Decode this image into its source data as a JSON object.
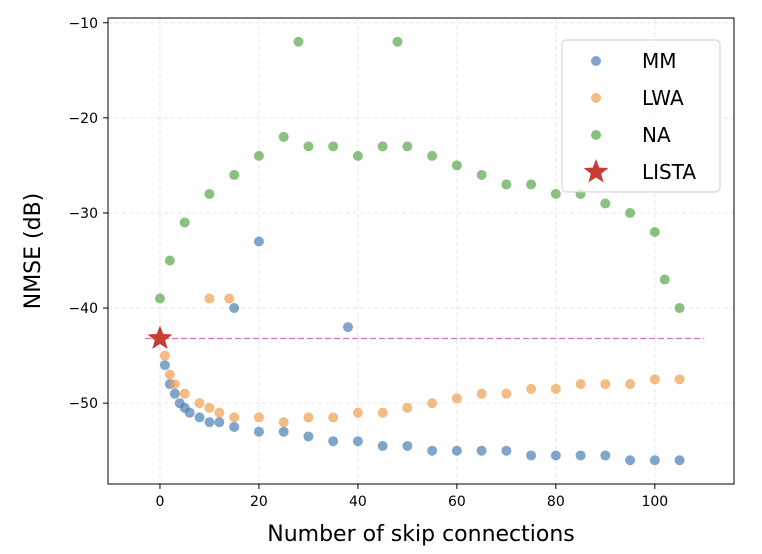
{
  "chart_data": {
    "type": "scatter",
    "xlabel": "Number of skip connections",
    "ylabel": "NMSE (dB)",
    "xlim": [
      -10.5,
      116
    ],
    "ylim": [
      -58.5,
      -9.5
    ],
    "x_ticks": [
      0,
      20,
      40,
      60,
      80,
      100
    ],
    "y_ticks": [
      -10,
      -20,
      -30,
      -40,
      -50
    ],
    "x_tick_labels": [
      "0",
      "20",
      "40",
      "60",
      "80",
      "100"
    ],
    "y_tick_labels": [
      "−10",
      "−20",
      "−30",
      "−40",
      "−50"
    ],
    "grid": true,
    "legend_position": "top-right",
    "series": [
      {
        "name": "MM",
        "color": "#4a7fb5",
        "marker": "circle",
        "trend": "points spread from about -45 to -52 dB near 0 skip connections, decreasing gradually to about -55 to -56 dB near 105 skip connections; scattered outliers up to about -33 dB at low counts",
        "x": [
          1,
          2,
          3,
          4,
          5,
          6,
          8,
          10,
          12,
          15,
          20,
          25,
          30,
          35,
          40,
          45,
          50,
          55,
          60,
          65,
          70,
          75,
          80,
          85,
          90,
          95,
          100,
          105,
          15,
          20,
          38
        ],
        "y": [
          -46,
          -48,
          -49,
          -50,
          -50.5,
          -51,
          -51.5,
          -52,
          -52,
          -52.5,
          -53,
          -53,
          -53.5,
          -54,
          -54,
          -54.5,
          -54.5,
          -55,
          -55,
          -55,
          -55,
          -55.5,
          -55.5,
          -55.5,
          -55.5,
          -56,
          -56,
          -56,
          -40,
          -33,
          -42
        ]
      },
      {
        "name": "LWA",
        "color": "#f0a050",
        "marker": "circle",
        "trend": "points near -45 to -49 dB at low counts, a band around -50 to -53 dB from 10 to 50 skip connections, then rising to about -47 to -48 dB near 105 skip connections",
        "x": [
          1,
          2,
          3,
          5,
          8,
          10,
          12,
          15,
          20,
          25,
          30,
          35,
          40,
          45,
          50,
          55,
          60,
          65,
          70,
          75,
          80,
          85,
          90,
          95,
          100,
          105,
          10,
          14
        ],
        "y": [
          -45,
          -47,
          -48,
          -49,
          -50,
          -50.5,
          -51,
          -51.5,
          -51.5,
          -52,
          -51.5,
          -51.5,
          -51,
          -51,
          -50.5,
          -50,
          -49.5,
          -49,
          -49,
          -48.5,
          -48.5,
          -48,
          -48,
          -48,
          -47.5,
          -47.5,
          -39,
          -39
        ]
      },
      {
        "name": "NA",
        "color": "#5aa64a",
        "marker": "circle",
        "trend": "points start around -35 to -40 dB at 0, rise to a broad peak around -20 to -25 dB between 25 and 55 skip connections (max about -12 dB), then fall back to about -40 dB near 105 skip connections",
        "x": [
          0,
          2,
          5,
          10,
          15,
          20,
          25,
          28,
          30,
          35,
          40,
          45,
          48,
          50,
          55,
          60,
          65,
          70,
          75,
          80,
          85,
          90,
          95,
          100,
          102,
          105
        ],
        "y": [
          -39,
          -35,
          -31,
          -28,
          -26,
          -24,
          -22,
          -12,
          -23,
          -23,
          -24,
          -23,
          -12,
          -23,
          -24,
          -25,
          -26,
          -27,
          -27,
          -28,
          -28,
          -29,
          -30,
          -32,
          -37,
          -40
        ]
      },
      {
        "name": "LISTA",
        "color": "#c83c32",
        "marker": "star",
        "x": [
          0
        ],
        "y": [
          -43.2
        ]
      }
    ],
    "reference_line": {
      "y": -43.2,
      "x_range": [
        -3,
        110
      ],
      "color": "#d070c0",
      "style": "dashed"
    }
  }
}
